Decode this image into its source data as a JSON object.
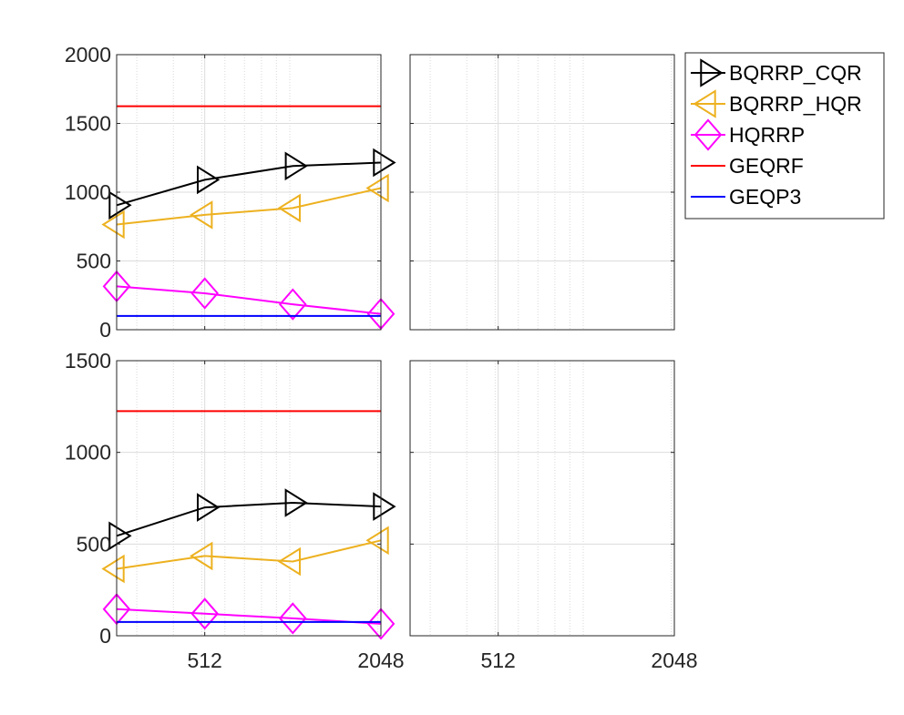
{
  "chart_data": [
    {
      "type": "line",
      "panel": "top-left",
      "x_scale": "log2",
      "x": [
        256,
        512,
        1024,
        2048
      ],
      "xlim": [
        256,
        2048
      ],
      "x_ticks": [
        512,
        2048
      ],
      "x_tick_labels_shown": false,
      "ylim": [
        0,
        2000
      ],
      "y_ticks": [
        0,
        500,
        1000,
        1500,
        2000
      ],
      "grid": true,
      "legend": "outside-right",
      "series": [
        {
          "name": "BQRRP_CQR",
          "color": "#000000",
          "marker": "triangle-right",
          "values": [
            905,
            1090,
            1190,
            1215
          ]
        },
        {
          "name": "BQRRP_HQR",
          "color": "#EDB120",
          "marker": "triangle-left",
          "values": [
            765,
            835,
            885,
            1030
          ]
        },
        {
          "name": "HQRRP",
          "color": "#FF00FF",
          "marker": "diamond",
          "values": [
            315,
            265,
            185,
            115
          ]
        },
        {
          "name": "GEQRF",
          "color": "#FF0000",
          "marker": "none",
          "values": [
            1625,
            1625,
            1625,
            1625
          ]
        },
        {
          "name": "GEQP3",
          "color": "#0000FF",
          "marker": "none",
          "values": [
            100,
            100,
            100,
            100
          ]
        }
      ]
    },
    {
      "type": "line",
      "panel": "top-right",
      "x_scale": "log2",
      "xlim": [
        256,
        2048
      ],
      "x_ticks": [
        512,
        2048
      ],
      "x_tick_labels_shown": false,
      "y_ticks": [
        0,
        500,
        1000,
        1500,
        2000
      ],
      "grid": true,
      "series": []
    },
    {
      "type": "line",
      "panel": "bottom-left",
      "x_scale": "log2",
      "x": [
        256,
        512,
        1024,
        2048
      ],
      "xlim": [
        256,
        2048
      ],
      "x_ticks": [
        512,
        2048
      ],
      "x_tick_labels": [
        "512",
        "2048"
      ],
      "ylim": [
        0,
        1500
      ],
      "y_ticks": [
        0,
        500,
        1000,
        1500
      ],
      "grid": true,
      "series": [
        {
          "name": "BQRRP_CQR",
          "color": "#000000",
          "marker": "triangle-right",
          "values": [
            545,
            700,
            725,
            705
          ]
        },
        {
          "name": "BQRRP_HQR",
          "color": "#EDB120",
          "marker": "triangle-left",
          "values": [
            365,
            435,
            405,
            520
          ]
        },
        {
          "name": "HQRRP",
          "color": "#FF00FF",
          "marker": "diamond",
          "values": [
            145,
            120,
            95,
            65
          ]
        },
        {
          "name": "GEQRF",
          "color": "#FF0000",
          "marker": "none",
          "values": [
            1225,
            1225,
            1225,
            1225
          ]
        },
        {
          "name": "GEQP3",
          "color": "#0000FF",
          "marker": "none",
          "values": [
            75,
            75,
            75,
            75
          ]
        }
      ]
    },
    {
      "type": "line",
      "panel": "bottom-right",
      "x_scale": "log2",
      "xlim": [
        256,
        2048
      ],
      "x_ticks": [
        512,
        2048
      ],
      "x_tick_labels": [
        "512",
        "2048"
      ],
      "y_ticks": [
        0,
        500,
        1000,
        1500
      ],
      "grid": true,
      "series": []
    }
  ]
}
